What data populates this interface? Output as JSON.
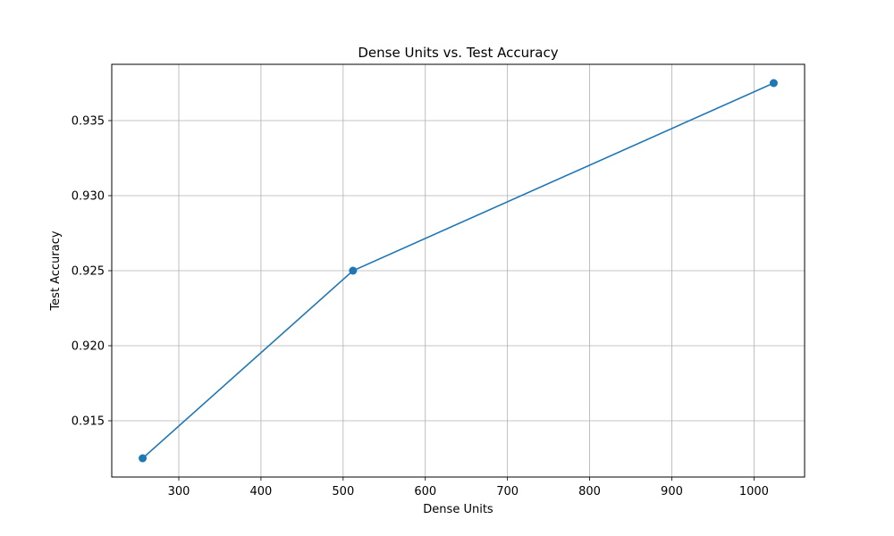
{
  "chart_data": {
    "type": "line",
    "title": "Dense Units vs. Test Accuracy",
    "xlabel": "Dense Units",
    "ylabel": "Test Accuracy",
    "xlim": [
      218.4,
      1061.6
    ],
    "ylim": [
      0.91125,
      0.93875
    ],
    "xticks": [
      300,
      400,
      500,
      600,
      700,
      800,
      900,
      1000
    ],
    "xtick_labels": [
      "300",
      "400",
      "500",
      "600",
      "700",
      "800",
      "900",
      "1000"
    ],
    "yticks": [
      0.915,
      0.92,
      0.925,
      0.93,
      0.935
    ],
    "ytick_labels": [
      "0.915",
      "0.920",
      "0.925",
      "0.930",
      "0.935"
    ],
    "grid": true,
    "series": [
      {
        "x": [
          256,
          512,
          1024
        ],
        "y": [
          0.9125,
          0.925,
          0.9375
        ],
        "color": "#1f77b4",
        "marker": "circle"
      }
    ]
  }
}
